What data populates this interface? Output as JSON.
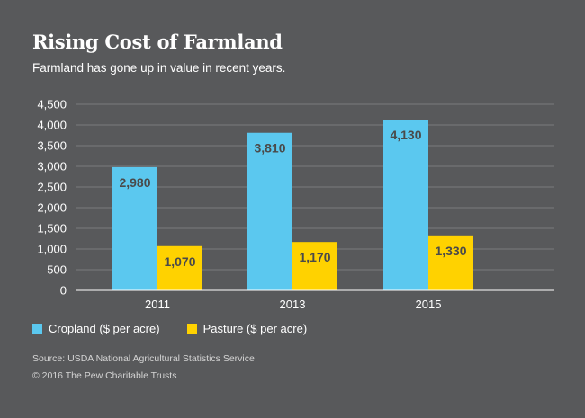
{
  "header": {
    "title": "Rising Cost of Farmland",
    "subtitle": "Farmland has gone up in value in recent years."
  },
  "chart_data": {
    "type": "bar",
    "title": "Rising Cost of Farmland",
    "subtitle": "Farmland has gone up in value in recent years.",
    "categories": [
      "2011",
      "2013",
      "2015"
    ],
    "series": [
      {
        "name": "Cropland ($ per acre)",
        "values": [
          2980,
          3810,
          4130
        ],
        "labels": [
          "2,980",
          "3,810",
          "4,130"
        ],
        "color": "#5bc8ef"
      },
      {
        "name": "Pasture ($ per acre)",
        "values": [
          1070,
          1170,
          1330
        ],
        "labels": [
          "1,070",
          "1,170",
          "1,330"
        ],
        "color": "#ffd200"
      }
    ],
    "yticks": [
      0,
      500,
      1000,
      1500,
      2000,
      2500,
      3000,
      3500,
      4000,
      4500
    ],
    "ytick_labels": [
      "0",
      "500",
      "1,000",
      "1,500",
      "2,000",
      "2,500",
      "3,000",
      "3,500",
      "4,000",
      "4,500"
    ],
    "ylim": [
      0,
      4500
    ],
    "xlabel": "",
    "ylabel": "",
    "grid": true,
    "legend": "bottom-left"
  },
  "legend": {
    "items": [
      {
        "label": "Cropland ($ per acre)",
        "color": "#5bc8ef"
      },
      {
        "label": "Pasture ($ per acre)",
        "color": "#ffd200"
      }
    ]
  },
  "footer": {
    "source": "Source: USDA National Agricultural Statistics Service",
    "copyright": "© 2016 The Pew Charitable Trusts"
  }
}
